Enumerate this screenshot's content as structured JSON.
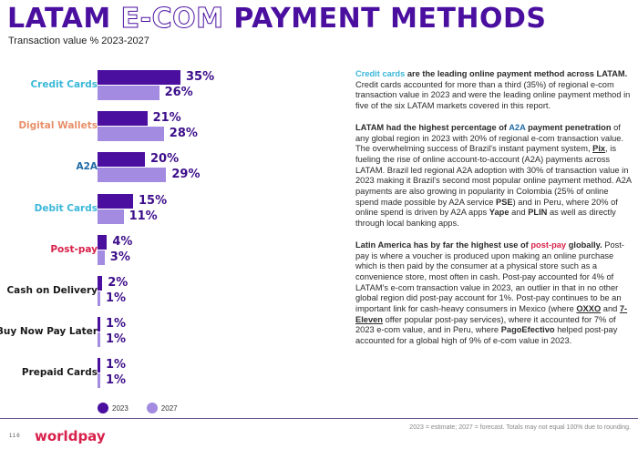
{
  "header": {
    "title_part1": "LATAM ",
    "title_part2": "E-COM",
    "title_part3": " PAYMENT METHODS",
    "subtitle": "Transaction value % 2023-2027"
  },
  "colors": {
    "bar_2023": "#4b0fa0",
    "bar_2027": "#a28be0",
    "credit_cards": "#3ab7d8",
    "digital_wallets": "#e8906a",
    "a2a": "#1f6aa5",
    "debit_cards": "#3ab7d8",
    "post_pay": "#d8204a",
    "other": "#1a1a1a"
  },
  "chart_data": {
    "type": "bar",
    "orientation": "horizontal",
    "title": "LATAM E-COM PAYMENT METHODS",
    "subtitle": "Transaction value % 2023-2027",
    "categories": [
      "Credit Cards",
      "Digital Wallets",
      "A2A",
      "Debit Cards",
      "Post-pay",
      "Cash on Delivery",
      "Buy Now Pay Later",
      "Prepaid Cards"
    ],
    "series": [
      {
        "name": "2023",
        "values": [
          35,
          21,
          20,
          15,
          4,
          2,
          1,
          1
        ]
      },
      {
        "name": "2027",
        "values": [
          26,
          28,
          29,
          11,
          3,
          1,
          1,
          1
        ]
      }
    ],
    "value_labels": {
      "2023": [
        "35%",
        "21%",
        "20%",
        "15%",
        "4%",
        "2%",
        "1%",
        "1%"
      ],
      "2027": [
        "26%",
        "28%",
        "29%",
        "11%",
        "3%",
        "1%",
        "1%",
        "1%"
      ]
    },
    "xlabel": "",
    "ylabel": "",
    "legend": [
      "2023",
      "2027"
    ],
    "legend_position": "bottom",
    "grid": false,
    "footnote": "2023 = estimate; 2027 = forecast. Totals may not equal 100% due to rounding."
  },
  "legend": {
    "l2023": "2023",
    "l2027": "2027"
  },
  "text": {
    "p1_hl": "Credit cards",
    "p1_bold": " are the leading online payment method across LATAM.",
    "p1_body": " Credit cards accounted for more than a third (35%) of regional e-com transaction value in 2023 and were the leading online payment method in five of the six LATAM markets covered in this report.",
    "p2_bold_a": "LATAM had the highest percentage of ",
    "p2_hl": "A2A",
    "p2_bold_b": " payment penetration",
    "p2_body_a": " of any global region in 2023 with 20% of regional e-com transaction value. The overwhelming success of Brazil's instant payment system, ",
    "p2_pix": "Pix",
    "p2_body_b": ", is fueling the rise of online account-to-account (A2A) payments across LATAM. Brazil led regional A2A adoption with 30% of transaction value in 2023 making it Brazil's second most popular online payment method. A2A payments are also growing in popularity in Colombia (25% of online spend made possible by A2A service ",
    "p2_pse": "PSE",
    "p2_body_c": ") and in Peru, where 20% of online spend is driven by A2A apps ",
    "p2_yape": "Yape",
    "p2_and": " and ",
    "p2_plin": "PLIN",
    "p2_body_d": " as well as directly through local banking apps.",
    "p3_bold_a": "Latin America has by far the highest use of ",
    "p3_hl": "post-pay",
    "p3_bold_b": " globally.",
    "p3_body_a": " Post-pay is where a voucher is produced upon making an online purchase which is then paid by the consumer at a physical store such as a convenience store, most often in cash. Post-pay accounted for 4% of LATAM's e-com transaction value in 2023, an outlier in that in no other global region did post-pay account for 1%. Post-pay continues to be an important link for cash-heavy consumers in Mexico (where ",
    "p3_oxxo": "OXXO",
    "p3_and": " and ",
    "p3_7e": "7-Eleven",
    "p3_body_b": " offer popular post-pay services), where it accounted for 7% of 2023 e-com value, and in Peru, where ",
    "p3_pago": "PagoEfectivo",
    "p3_body_c": " helped post-pay accounted for a global high of 9% of e-com value in 2023."
  },
  "footer": {
    "page_number": "116",
    "logo": "worldpay",
    "footnote": "2023 = estimate; 2027 = forecast. Totals may not equal 100% due to rounding."
  }
}
